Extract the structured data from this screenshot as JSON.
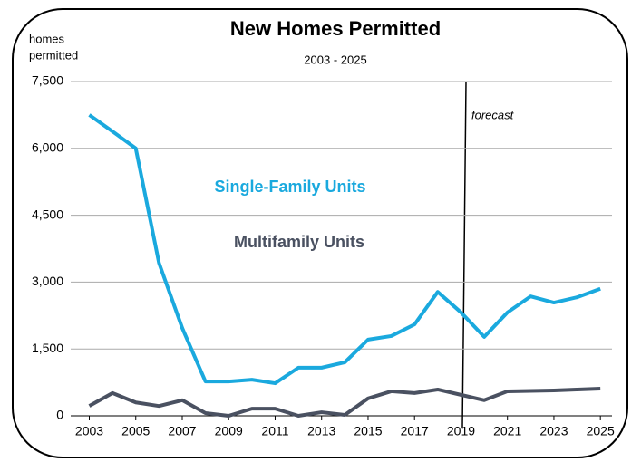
{
  "chart_data": {
    "type": "line",
    "title": "New Homes Permitted",
    "subtitle": "2003 - 2025",
    "y_label": [
      "homes",
      "permitted"
    ],
    "annotation": "forecast",
    "x": [
      2003,
      2004,
      2005,
      2006,
      2007,
      2008,
      2009,
      2010,
      2011,
      2012,
      2013,
      2014,
      2015,
      2016,
      2017,
      2018,
      2019,
      2020,
      2021,
      2022,
      2023,
      2024,
      2025
    ],
    "series": [
      {
        "name": "Single-Family Units",
        "color": "#1aa9de",
        "values": [
          6750,
          6380,
          6000,
          3430,
          1970,
          770,
          770,
          810,
          730,
          1080,
          1080,
          1200,
          1710,
          1790,
          2050,
          2780,
          2320,
          1770,
          2320,
          2680,
          2540,
          2660,
          2850
        ]
      },
      {
        "name": "Multifamily Units",
        "color": "#4a5161",
        "values": [
          220,
          510,
          300,
          220,
          350,
          60,
          0,
          160,
          160,
          0,
          80,
          20,
          390,
          550,
          510,
          590,
          470,
          350,
          550,
          560,
          570,
          590,
          610
        ]
      }
    ],
    "xlim": [
      2002.2,
      2025.5
    ],
    "xticks": [
      2003,
      2005,
      2007,
      2009,
      2011,
      2013,
      2015,
      2017,
      2019,
      2021,
      2023,
      2025
    ],
    "ylim": [
      0,
      7500
    ],
    "yticks": [
      0,
      {
        "value": 1500,
        "label": "1,500"
      },
      {
        "value": 3000,
        "label": "3,000"
      },
      {
        "value": 4500,
        "label": "4,500"
      },
      {
        "value": 6000,
        "label": "6,000"
      },
      {
        "value": 7500,
        "label": "7,500"
      }
    ],
    "grid": true
  }
}
